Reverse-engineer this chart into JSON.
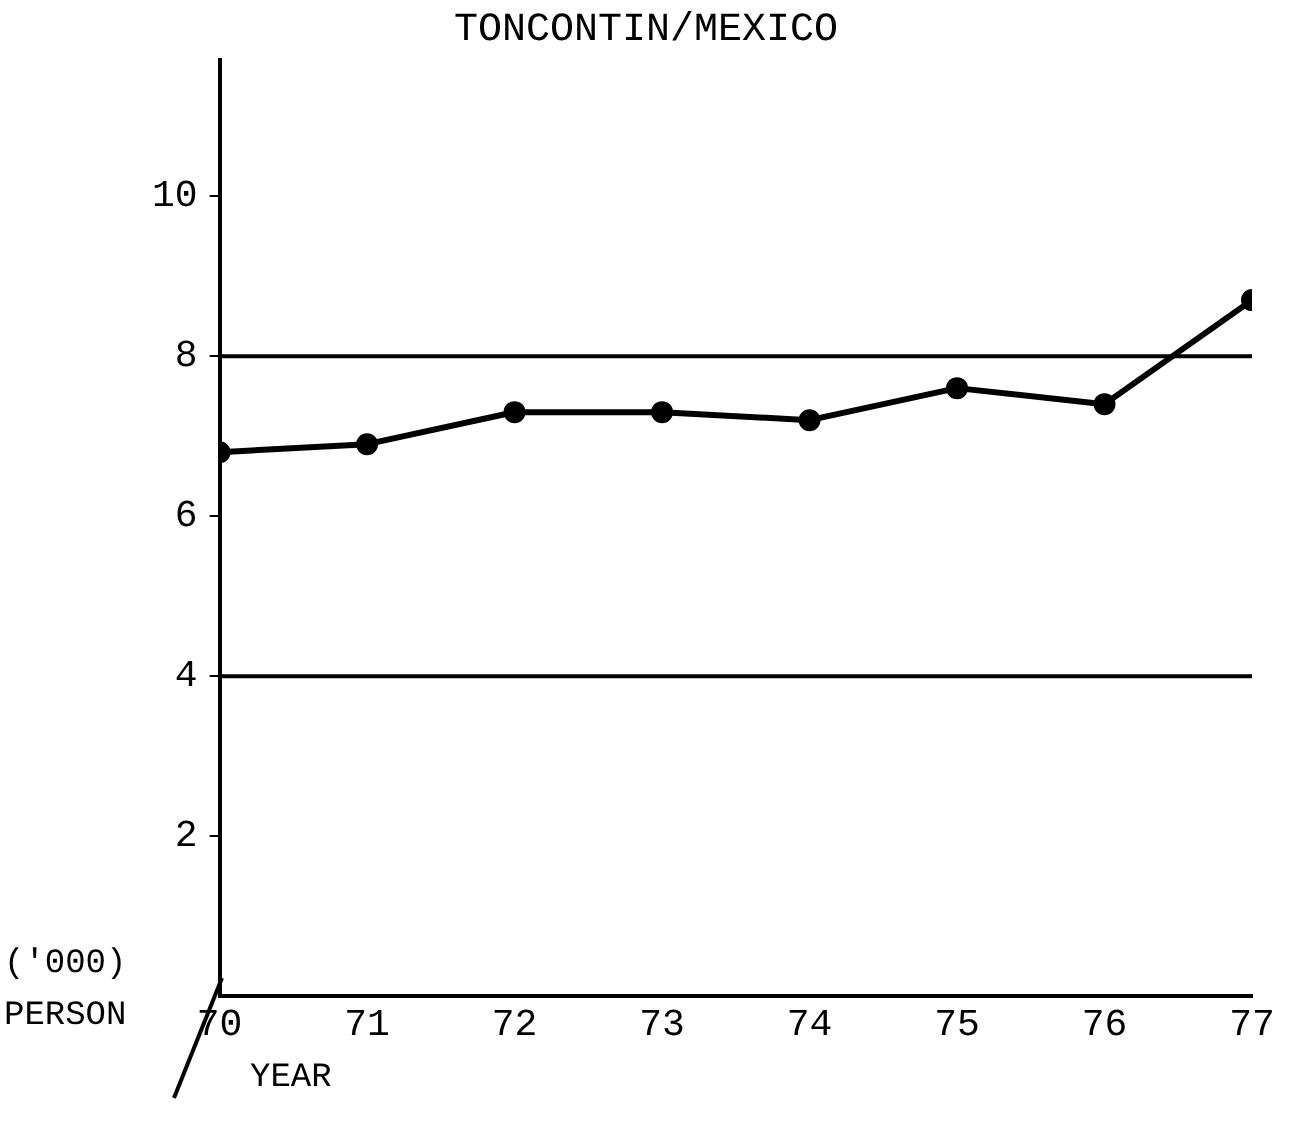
{
  "chart_data": {
    "type": "line",
    "title": "TONCONTIN/MEXICO",
    "xlabel": "YEAR",
    "ylabel": "('000) PERSON",
    "x": [
      70,
      71,
      72,
      73,
      74,
      75,
      76,
      77
    ],
    "series": [
      {
        "color": "#000000",
        "values": [
          6.8,
          6.9,
          7.3,
          7.3,
          7.2,
          7.6,
          7.4,
          8.7
        ]
      }
    ],
    "xlim": [
      70,
      77
    ],
    "xticks": [
      70,
      71,
      72,
      73,
      74,
      75,
      76,
      77
    ],
    "ylim": [
      0,
      11.7
    ],
    "yticks": [
      2,
      4,
      6,
      8,
      10
    ],
    "ref_lines": [
      {
        "axis": "y",
        "value": 8,
        "color": "#000000"
      },
      {
        "axis": "y",
        "value": 4,
        "color": "#000000"
      }
    ],
    "marker": "circle",
    "line_style": "solid",
    "grid": false,
    "legend": false
  }
}
